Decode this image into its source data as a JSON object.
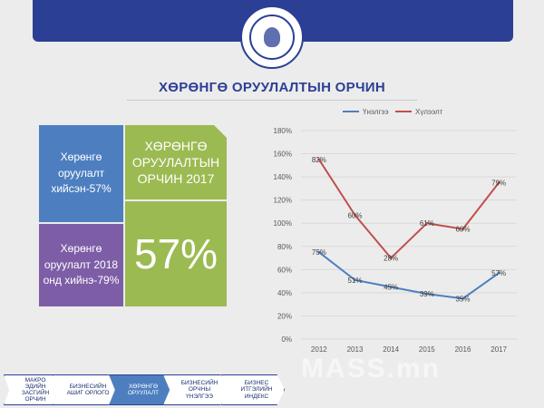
{
  "header": {
    "page_title": "ХӨРӨНГӨ ОРУУЛАЛТЫН ОРЧИН"
  },
  "tiles": {
    "invested_label": "Хөрөнгө оруулалт хийсэн-57%",
    "plan_label": "Хөрөнгө оруулалт 2018 онд хийнэ-79%",
    "env_title": "ХӨРӨНГӨ ОРУУЛАЛТЫН ОРЧИН 2017",
    "big_percent": "57%"
  },
  "colors": {
    "header_blue": "#2b3f94",
    "tile_blue": "#4d7fc0",
    "tile_purple": "#7d5ea6",
    "tile_green": "#9cba52",
    "series_decline": "#4d7fc0",
    "series_expect": "#c0504d"
  },
  "chart_data": {
    "type": "line",
    "x": [
      "2012",
      "2013",
      "2014",
      "2015",
      "2016",
      "2017"
    ],
    "ylim": [
      0,
      180
    ],
    "yticks": [
      "0%",
      "20%",
      "40%",
      "60%",
      "80%",
      "100%",
      "120%",
      "140%",
      "160%",
      "180%"
    ],
    "series": [
      {
        "name": "Үнэлгээ",
        "values": [
          75,
          51,
          45,
          39,
          35,
          57
        ],
        "labels": [
          "75%",
          "51%",
          "45%",
          "39%",
          "35%",
          "57%"
        ]
      },
      {
        "name": "Хүлээлт",
        "values": [
          155,
          107,
          70,
          100,
          95,
          135
        ],
        "labels": [
          "82%",
          "60%",
          "28%",
          "61%",
          "60%",
          "79%"
        ]
      }
    ],
    "legend": "top",
    "grid": true
  },
  "footer": {
    "nav": [
      {
        "label": "МАКРО ЭДИЙН ЗАСГИЙН ОРЧИН"
      },
      {
        "label": "БИЗНЕСИЙН АШИГ ОРЛОГО"
      },
      {
        "label": "ХӨРӨНГӨ ОРУУЛАЛТ"
      },
      {
        "label": "БИЗНЕСИЙН ОРЧНЫ ҮНЭЛГЭЭ"
      },
      {
        "label": "БИЗНЕС ИТГЭЛИЙН ИНДЕКС"
      }
    ],
    "watermark": "MASS.mn"
  }
}
